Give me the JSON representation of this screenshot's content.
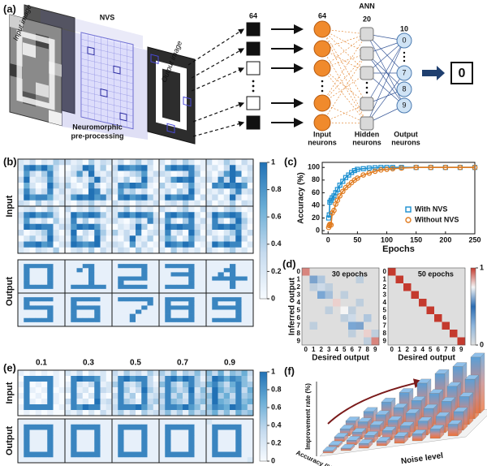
{
  "panel_labels": [
    "(a)",
    "(b)",
    "(c)",
    "(d)",
    "(e)",
    "(f)"
  ],
  "diagram": {
    "input_image": "Input image",
    "nvs": "NVS",
    "output_image": "Output image",
    "preprocessing": [
      "Neuromorphic",
      "pre-processing"
    ],
    "ann": "ANN",
    "vector_size": 64,
    "layer_sizes": [
      64,
      20,
      10
    ],
    "layer_names": [
      [
        "Input",
        "neurons"
      ],
      [
        "Hidden",
        "neurons"
      ],
      [
        "Output",
        "neurons"
      ]
    ],
    "output_digits": [
      "0",
      "7",
      "8",
      "9"
    ],
    "result": "0"
  },
  "chart_data": [
    {
      "type": "image-grid",
      "row_labels": [
        "Input",
        "Output"
      ],
      "clim": [
        0,
        1
      ],
      "colorbar_ticks": [
        1,
        0.8,
        0.6,
        0.4,
        0.2,
        0
      ],
      "colors": [
        "#f7fbff",
        "#c6dbef",
        "#6baed6",
        "#2171b5"
      ],
      "input_images": [
        [
          "21302143",
          "28979630",
          "17314820",
          "39123731",
          "06201942",
          "28413813",
          "19788621",
          "32041302"
        ],
        [
          "31204132",
          "02398140",
          "13729213",
          "20314931",
          "41028302",
          "13209814",
          "27989783",
          "10324120"
        ],
        [
          "13024130",
          "39878920",
          "20134713",
          "31402931",
          "18798710",
          "27341302",
          "08978941",
          "31203213"
        ],
        [
          "20314201",
          "17989831",
          "32013840",
          "03798912",
          "41203721",
          "13042930",
          "29789803",
          "02314120"
        ],
        [
          "30142031",
          "12039213",
          "20379802",
          "31839143",
          "08798970",
          "21304823",
          "13029301",
          "30214032"
        ],
        [
          "12301420",
          "38978730",
          "27213041",
          "19898813",
          "30124820",
          "02413931",
          "38897802",
          "21032140"
        ],
        [
          "30214302",
          "19789841",
          "28140312",
          "37989730",
          "29031841",
          "18420930",
          "39878912",
          "02314031"
        ],
        [
          "21403120",
          "28979872",
          "31024183",
          "02139402",
          "41318023",
          "10392140",
          "32071301",
          "13204120"
        ],
        [
          "31024103",
          "08978920",
          "37204813",
          "19898831",
          "28130940",
          "36402732",
          "19879801",
          "20413120"
        ],
        [
          "12034201",
          "39789820",
          "18304941",
          "28989730",
          "31024813",
          "03142930",
          "29798802",
          "31024120"
        ]
      ],
      "output_images": [
        [
          "11111111",
          "18888811",
          "18111811",
          "18111811",
          "18111811",
          "18111811",
          "18888811",
          "11111111"
        ],
        [
          "11111111",
          "11188111",
          "11818111",
          "11118111",
          "11118111",
          "11118111",
          "18888881",
          "11111111"
        ],
        [
          "11111111",
          "18888811",
          "11111811",
          "11111811",
          "18888811",
          "18111111",
          "18888811",
          "11111111"
        ],
        [
          "11111111",
          "18888811",
          "11111811",
          "11888811",
          "11111811",
          "11111811",
          "18888811",
          "11111111"
        ],
        [
          "11111111",
          "11118111",
          "11188111",
          "11818111",
          "18888881",
          "11118111",
          "11118111",
          "11111111"
        ],
        [
          "11111111",
          "18888811",
          "18111111",
          "18888811",
          "11111811",
          "11111811",
          "18888811",
          "11111111"
        ],
        [
          "11111111",
          "18888811",
          "18111111",
          "18888811",
          "18111811",
          "18111811",
          "18888811",
          "11111111"
        ],
        [
          "11111111",
          "18888881",
          "11111181",
          "11111811",
          "11118111",
          "11181111",
          "11181111",
          "11111111"
        ],
        [
          "11111111",
          "18888811",
          "18111811",
          "18888811",
          "18111811",
          "18111811",
          "18888811",
          "11111111"
        ],
        [
          "11111111",
          "18888811",
          "18111811",
          "18888811",
          "11111811",
          "11111811",
          "18888811",
          "11111111"
        ]
      ]
    },
    {
      "type": "line",
      "xlabel": "Epochs",
      "ylabel": "Accuracy (%)",
      "x": [
        1,
        2,
        3,
        5,
        7,
        10,
        13,
        16,
        20,
        25,
        30,
        35,
        40,
        45,
        50,
        60,
        70,
        80,
        90,
        100,
        110,
        125,
        150,
        175,
        200,
        225,
        250
      ],
      "series": [
        {
          "name": "With NVS",
          "color": "#1a8fd0",
          "marker": "square",
          "values": [
            20,
            25,
            45,
            48,
            52,
            55,
            60,
            65,
            72,
            78,
            84,
            88,
            92,
            95,
            97,
            98,
            99,
            99.5,
            100,
            100,
            100,
            100,
            100,
            100,
            100,
            100,
            100
          ]
        },
        {
          "name": "Without NVS",
          "color": "#e07b1f",
          "marker": "circle",
          "values": [
            5,
            8,
            10,
            9,
            28,
            32,
            42,
            48,
            55,
            62,
            68,
            72,
            76,
            80,
            83,
            88,
            91,
            94,
            96,
            97,
            98,
            99,
            100,
            100,
            100,
            100,
            100
          ]
        }
      ],
      "xlim": [
        -10,
        250
      ],
      "ylim": [
        -5,
        108
      ],
      "xticks": [
        0,
        50,
        100,
        150,
        200,
        250
      ],
      "yticks": [
        0,
        20,
        40,
        60,
        80,
        100
      ],
      "legend": "lower right"
    },
    {
      "type": "heatmap",
      "xlabel": "Desired output",
      "ylabel": "Inferred output",
      "categories": [
        0,
        1,
        2,
        3,
        4,
        5,
        6,
        7,
        8,
        9
      ],
      "clim": [
        0,
        1
      ],
      "colorbar_ticks": [
        1,
        0
      ],
      "colors": [
        "#dedede",
        "#8fb6dc",
        "#2c6db2",
        "#f5f5f5",
        "#c43a2e"
      ],
      "matrices": [
        {
          "title": "30 epochs",
          "values": [
            [
              0.9,
              0,
              0,
              0,
              0,
              0,
              0,
              0,
              0,
              0
            ],
            [
              0,
              0.6,
              0.15,
              0,
              0,
              0,
              0,
              0.1,
              0,
              0
            ],
            [
              0,
              0.1,
              0.7,
              0.1,
              0,
              0,
              0,
              0,
              0,
              0
            ],
            [
              0,
              0,
              0.3,
              0.65,
              0,
              0.1,
              0,
              0,
              0,
              0
            ],
            [
              0,
              0,
              0,
              0,
              0.8,
              0,
              0,
              0.1,
              0,
              0
            ],
            [
              0,
              0,
              0,
              0.1,
              0,
              0.75,
              0.1,
              0,
              0,
              0
            ],
            [
              0,
              0,
              0,
              0,
              0,
              0.1,
              0.7,
              0,
              0.15,
              0
            ],
            [
              0,
              0.1,
              0,
              0,
              0,
              0,
              0.3,
              0.6,
              0,
              0
            ],
            [
              0,
              0,
              0,
              0,
              0,
              0,
              0.1,
              0,
              0.8,
              0.1
            ],
            [
              0,
              0,
              0,
              0,
              0,
              0,
              0,
              0,
              0.1,
              0.9
            ]
          ]
        },
        {
          "title": "50 epochs",
          "values": [
            [
              1,
              0,
              0,
              0,
              0,
              0,
              0,
              0,
              0,
              0
            ],
            [
              0,
              1,
              0,
              0,
              0,
              0,
              0,
              0,
              0,
              0
            ],
            [
              0,
              0,
              1,
              0,
              0,
              0,
              0,
              0,
              0,
              0
            ],
            [
              0,
              0,
              0,
              1,
              0,
              0,
              0,
              0,
              0,
              0
            ],
            [
              0,
              0,
              0,
              0,
              1,
              0,
              0,
              0,
              0,
              0
            ],
            [
              0,
              0,
              0,
              0,
              0,
              1,
              0,
              0,
              0,
              0
            ],
            [
              0,
              0,
              0,
              0,
              0,
              0,
              1,
              0,
              0,
              0
            ],
            [
              0,
              0,
              0,
              0,
              0,
              0,
              0,
              1,
              0,
              0
            ],
            [
              0,
              0,
              0,
              0,
              0,
              0,
              0,
              0,
              1,
              0
            ],
            [
              0,
              0,
              0,
              0,
              0,
              0,
              0,
              0,
              0,
              1
            ]
          ]
        }
      ]
    },
    {
      "type": "image-grid",
      "noise_levels": [
        0.1,
        0.3,
        0.5,
        0.7,
        0.9
      ],
      "row_labels": [
        "Input",
        "Output"
      ],
      "clim": [
        0,
        1
      ],
      "colorbar_ticks": [
        1,
        0.8,
        0.6,
        0.4,
        0.2,
        0
      ],
      "colors": [
        "#f7fbff",
        "#c6dbef",
        "#6baed6",
        "#2171b5"
      ],
      "input_images": [
        [
          "10101010",
          "08888810",
          "18010810",
          "08101801",
          "18010810",
          "08101810",
          "18888801",
          "01010100"
        ],
        [
          "21302120",
          "08988720",
          "18213812",
          "28120832",
          "08302810",
          "38120923",
          "18798812",
          "21302031"
        ],
        [
          "31423142",
          "28978830",
          "48324831",
          "18413942",
          "38240823",
          "28431834",
          "38889741",
          "24130423"
        ],
        [
          "42514352",
          "38979841",
          "58425843",
          "28534925",
          "48352834",
          "38543845",
          "48879752",
          "35241534"
        ],
        [
          "53625463",
          "49868752",
          "68536854",
          "39645836",
          "59463845",
          "49654856",
          "58769863",
          "46352645"
        ]
      ],
      "output_images": [
        [
          "11111111",
          "18888811",
          "18111811",
          "18111811",
          "18111811",
          "18111811",
          "18888811",
          "11111111"
        ],
        [
          "11111111",
          "18888811",
          "18111811",
          "18111811",
          "18111811",
          "18111811",
          "18888811",
          "11111111"
        ],
        [
          "11111111",
          "18888811",
          "18111811",
          "18111811",
          "18111811",
          "18111811",
          "18888811",
          "11111111"
        ],
        [
          "11111111",
          "18888811",
          "18111811",
          "18111811",
          "18111811",
          "18111811",
          "18888811",
          "11111111"
        ],
        [
          "21111111",
          "18888811",
          "18111811",
          "18111811",
          "18111811",
          "18111811",
          "18888811",
          "11111112"
        ]
      ]
    },
    {
      "type": "bar3d",
      "zlabel": "Improvement rate (%)",
      "xlabel": "Noise level",
      "ylabel": "Accuracy (%)",
      "zlim": [
        0,
        25
      ],
      "values": [
        [
          1,
          1,
          2,
          2,
          3,
          3,
          4,
          5
        ],
        [
          1,
          2,
          3,
          4,
          5,
          6,
          7,
          8
        ],
        [
          2,
          3,
          5,
          6,
          8,
          9,
          11,
          12
        ],
        [
          3,
          5,
          7,
          9,
          11,
          13,
          15,
          17
        ],
        [
          4,
          7,
          10,
          13,
          16,
          19,
          21,
          24
        ]
      ]
    }
  ]
}
